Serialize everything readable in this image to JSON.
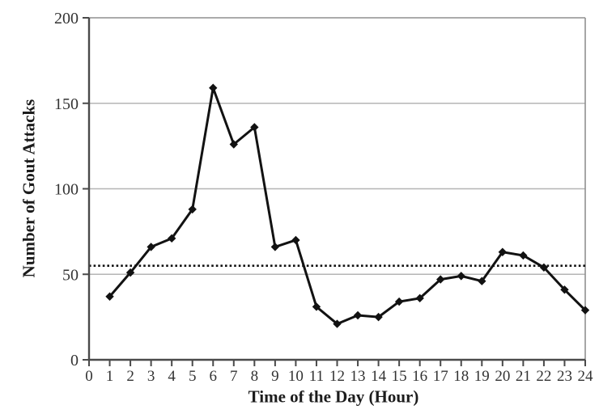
{
  "chart_data": {
    "type": "line",
    "title": "",
    "xlabel": "Time of the Day (Hour)",
    "ylabel": "Number of Gout Attacks",
    "x": [
      1,
      2,
      3,
      4,
      5,
      6,
      7,
      8,
      9,
      10,
      11,
      12,
      13,
      14,
      15,
      16,
      17,
      18,
      19,
      20,
      21,
      22,
      23,
      24
    ],
    "values": [
      37,
      51,
      66,
      71,
      88,
      159,
      126,
      136,
      66,
      70,
      31,
      21,
      26,
      25,
      34,
      36,
      47,
      49,
      46,
      63,
      61,
      54,
      41,
      29
    ],
    "reference_line": {
      "value": 55,
      "style": "dotted"
    },
    "xlim": [
      0,
      24
    ],
    "ylim": [
      0,
      200
    ],
    "x_ticks": [
      0,
      1,
      2,
      3,
      4,
      5,
      6,
      7,
      8,
      9,
      10,
      11,
      12,
      13,
      14,
      15,
      16,
      17,
      18,
      19,
      20,
      21,
      22,
      23,
      24
    ],
    "y_ticks": [
      0,
      50,
      100,
      150,
      200
    ],
    "grid": "horizontal",
    "legend": "none",
    "marker": "diamond",
    "colors": {
      "series_line": "#121212",
      "marker_fill": "#121212",
      "reference_line": "#121212",
      "gridline": "#b5b5b5",
      "plot_border": "#8f8f8f",
      "axis_line": "#4a4a4a",
      "tick_label": "#333333",
      "background": "#ffffff"
    }
  }
}
